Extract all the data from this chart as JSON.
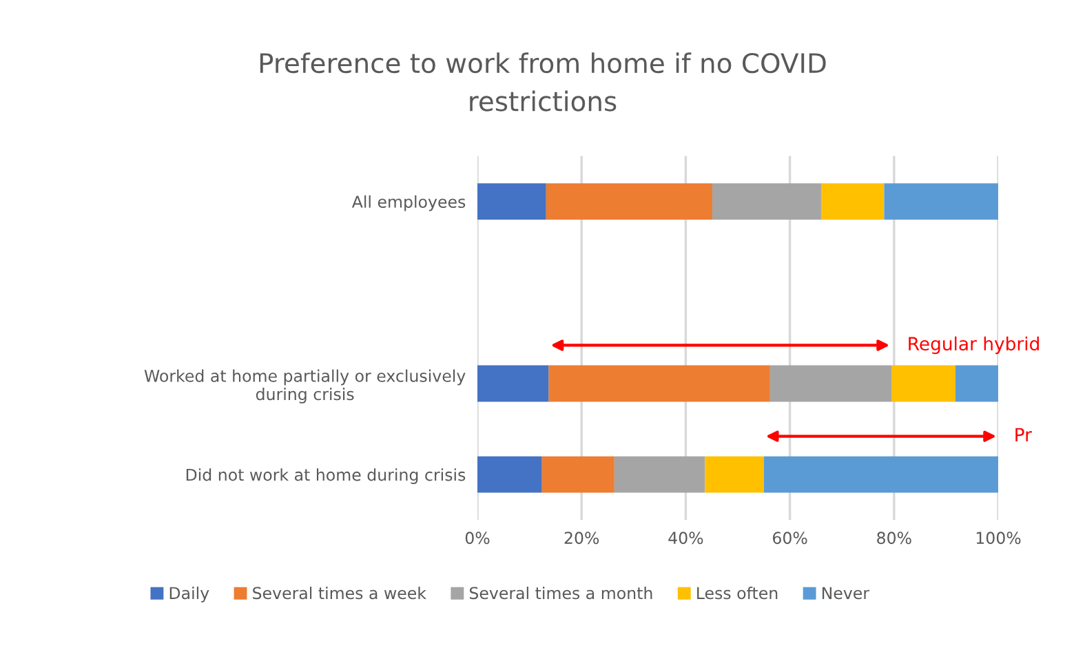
{
  "chart_data": {
    "type": "bar",
    "orientation": "horizontal",
    "stacked": true,
    "title": "Preference to work from home if no COVID restrictions",
    "categories": [
      "All employees",
      null,
      "Worked at home partially or exclusively during crisis",
      "Did not work at home during crisis"
    ],
    "series": [
      {
        "name": "Daily",
        "color": "#4472c4",
        "values": [
          13.2,
          null,
          13.7,
          12.4
        ]
      },
      {
        "name": "Several times a week",
        "color": "#ed7d31",
        "values": [
          31.9,
          null,
          42.5,
          13.9
        ]
      },
      {
        "name": "Several times a month",
        "color": "#a5a5a5",
        "values": [
          20.9,
          null,
          23.3,
          17.4
        ]
      },
      {
        "name": "Less often",
        "color": "#ffc000",
        "values": [
          12.1,
          null,
          12.3,
          11.3
        ]
      },
      {
        "name": "Never",
        "color": "#5b9bd5",
        "values": [
          21.9,
          null,
          8.2,
          45.0
        ]
      }
    ],
    "xlim": [
      0,
      100
    ],
    "xticks": [
      {
        "value": 0,
        "label": "0%"
      },
      {
        "value": 20,
        "label": "20%"
      },
      {
        "value": 40,
        "label": "40%"
      },
      {
        "value": 60,
        "label": "60%"
      },
      {
        "value": 80,
        "label": "80%"
      },
      {
        "value": 100,
        "label": "100%"
      }
    ],
    "grid": "x",
    "legend": "bottom",
    "annotations": [
      "Regular hybrid",
      "Pr"
    ]
  }
}
